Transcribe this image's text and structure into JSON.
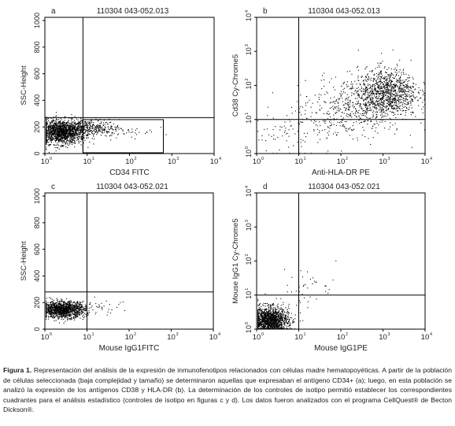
{
  "panels": [
    {
      "letter": "a",
      "sample_id": "110304 043-052.013",
      "ylabel": "SSC-Height",
      "xlabel": "CD34 FITC",
      "y_scale": "linear",
      "y_ticks": [
        "0",
        "200",
        "400",
        "600",
        "800",
        "1000"
      ],
      "x_ticks": [
        "10",
        "10",
        "10",
        "10",
        "10"
      ],
      "x_tick_exp": [
        "0",
        "1",
        "2",
        "3",
        "4"
      ],
      "quadrant_x_decades": 0.9,
      "quadrant_y": 270,
      "gate": {
        "x_from_decades": 0.9,
        "x_to_decades": 2.8,
        "y_from": 0,
        "y_to": 255
      },
      "clusters": [
        {
          "cx": 0.38,
          "cy": 165,
          "sx": 0.28,
          "sy": 45,
          "n": 1500
        },
        {
          "cx": 1.05,
          "cy": 195,
          "sx": 0.35,
          "sy": 32,
          "n": 330
        },
        {
          "cx": 1.9,
          "cy": 170,
          "sx": 0.35,
          "sy": 30,
          "n": 40
        }
      ]
    },
    {
      "letter": "b",
      "sample_id": "110304 043-052.013",
      "ylabel": "Cd38 Cy-Chrome5",
      "xlabel": "Anti-HLA-DR PE",
      "y_scale": "log",
      "y_ticks": [
        "10",
        "10",
        "10",
        "10",
        "10"
      ],
      "y_tick_exp": [
        "0",
        "1",
        "2",
        "3",
        "4"
      ],
      "x_ticks": [
        "10",
        "10",
        "10",
        "10",
        "10"
      ],
      "x_tick_exp": [
        "0",
        "1",
        "2",
        "3",
        "4"
      ],
      "quadrant_x_decades": 1.0,
      "quadrant_y_decades": 1.0,
      "clusters": [
        {
          "cx": 3.1,
          "cy": 1.8,
          "sx": 0.35,
          "sy": 0.35,
          "n": 1000
        },
        {
          "cx": 2.4,
          "cy": 1.4,
          "sx": 0.5,
          "sy": 0.4,
          "n": 420
        },
        {
          "cx": 1.5,
          "cy": 1.0,
          "sx": 0.5,
          "sy": 0.5,
          "n": 130
        },
        {
          "cx": 0.6,
          "cy": 0.5,
          "sx": 0.4,
          "sy": 0.4,
          "n": 40
        }
      ]
    },
    {
      "letter": "c",
      "sample_id": "110304 043-052.021",
      "ylabel": "SSC-Height",
      "xlabel": "Mouse IgG1FITC",
      "y_scale": "linear",
      "y_ticks": [
        "0",
        "200",
        "400",
        "600",
        "800",
        "1000"
      ],
      "x_ticks": [
        "10",
        "10",
        "10",
        "10",
        "10"
      ],
      "x_tick_exp": [
        "0",
        "1",
        "2",
        "3",
        "4"
      ],
      "quadrant_x_decades": 1.0,
      "quadrant_y": 280,
      "clusters": [
        {
          "cx": 0.42,
          "cy": 150,
          "sx": 0.26,
          "sy": 30,
          "n": 1300
        },
        {
          "cx": 1.3,
          "cy": 165,
          "sx": 0.45,
          "sy": 28,
          "n": 35
        }
      ]
    },
    {
      "letter": "d",
      "sample_id": "110304 043-052.021",
      "ylabel": "Mouse IgG1 Cy-Chrome5",
      "xlabel": "Mouse IgG1PE",
      "y_scale": "log",
      "y_ticks": [
        "10",
        "10",
        "10",
        "10",
        "10"
      ],
      "y_tick_exp": [
        "0",
        "1",
        "2",
        "3",
        "4"
      ],
      "x_ticks": [
        "10",
        "10",
        "10",
        "10",
        "10"
      ],
      "x_tick_exp": [
        "0",
        "1",
        "2",
        "3",
        "4"
      ],
      "quadrant_x_decades": 1.0,
      "quadrant_y_decades": 1.0,
      "clusters": [
        {
          "cx": 0.3,
          "cy": 0.25,
          "sx": 0.22,
          "sy": 0.2,
          "n": 1500
        },
        {
          "cx": 1.2,
          "cy": 1.3,
          "sx": 0.35,
          "sy": 0.3,
          "n": 35
        },
        {
          "cx": 0.6,
          "cy": 0.6,
          "sx": 0.3,
          "sy": 0.3,
          "n": 25
        }
      ]
    }
  ],
  "caption": {
    "label": "Figura 1.",
    "text": " Representación del análisis de la expresión de inmunofenotipos relacionados con células madre hematopoyéticas. A partir de la población de células seleccionada (baja complejidad y tamaño) se determinaron aquellas que expresaban el antígeno CD34+ (a); luego, en esta población se analizó la expresión de los antígenos CD38 y HLA-DR (b). La determinación de los controles de isotipo permitió establecer los correspondientes cuadrantes para el análisis estadístico (controles de isotipo en figuras c y d). Los datos fueron analizados con el programa CellQuest® de Becton Dickson®."
  }
}
